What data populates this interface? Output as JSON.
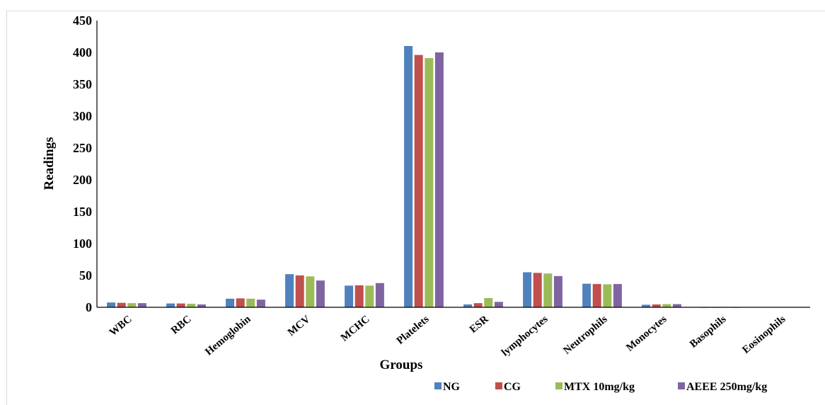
{
  "chart_data": {
    "type": "bar",
    "title": "",
    "xlabel": "Groups",
    "ylabel": "Readings",
    "ylim": [
      0,
      450
    ],
    "yticks": [
      0,
      50,
      100,
      150,
      200,
      250,
      300,
      350,
      400,
      450
    ],
    "grid": false,
    "legend_position": "bottom-right",
    "categories": [
      "WBC",
      "RBC",
      "Hemoglobin",
      "MCV",
      "MCHC",
      "Platelets",
      "ESR",
      "lymphocytes",
      "Neutrophils",
      "Monocytes",
      "Basophils",
      "Eosinophils"
    ],
    "series": [
      {
        "name": "NG",
        "color": "#4f81bd",
        "values": [
          7.5,
          6.0,
          13.5,
          52,
          34,
          410,
          4.5,
          55,
          37,
          4,
          0.1,
          0.5
        ]
      },
      {
        "name": "CG",
        "color": "#c0504d",
        "values": [
          7.0,
          6.0,
          14.0,
          50,
          34.5,
          396,
          6.5,
          54,
          36.5,
          4.5,
          0.1,
          0.5
        ]
      },
      {
        "name": "MTX 10mg/kg",
        "color": "#9bbb59",
        "values": [
          6.5,
          5.5,
          13.5,
          48.5,
          34,
          391,
          14.5,
          53,
          36,
          5,
          0.1,
          0.5
        ]
      },
      {
        "name": "AEEE 250mg/kg",
        "color": "#8064a2",
        "values": [
          6.5,
          4.5,
          12,
          42,
          38,
          400,
          8.5,
          49,
          36.5,
          5,
          0.1,
          0.5
        ]
      }
    ]
  }
}
